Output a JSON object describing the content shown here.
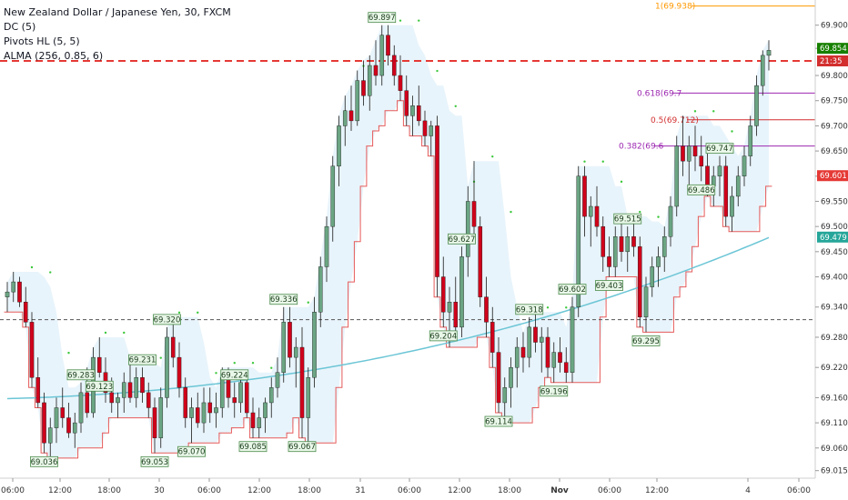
{
  "legend": {
    "symbol_line": "New Zealand Dollar / Japanese Yen, 30, FXCM",
    "indicators": [
      "DC (5)",
      "Pivots HL (5, 5)",
      "ALMA (256, 0.85, 6)"
    ]
  },
  "colors": {
    "up_candle": "#6ba583",
    "down_candle": "#d0021b",
    "donchian": "#e55a5a",
    "donchian_fill": "#e8f4fb",
    "alma": "#6cc6d6",
    "pivot_dots": "#3cc83c",
    "fib_0382": "#9c27b0",
    "fib_05": "#d32f2f",
    "fib_0618": "#9c27b0",
    "fib_1": "#ff9800",
    "current_price": "#178000",
    "level_red": "#e53935",
    "level_teal": "#26a69a"
  },
  "chart_data": {
    "type": "candlestick",
    "timeframe": "30",
    "symbol": "NZDJPY",
    "ylim": [
      69.0,
      69.95
    ],
    "y_ticks": [
      "69.015",
      "69.060",
      "69.110",
      "69.160",
      "69.220",
      "69.280",
      "69.340",
      "69.400",
      "69.450",
      "69.500",
      "69.550",
      "69.600",
      "69.650",
      "69.700",
      "69.750",
      "69.800",
      "69.854",
      "69.900"
    ],
    "x_ticks": [
      "06:00",
      "12:00",
      "18:00",
      "30",
      "06:00",
      "12:00",
      "18:00",
      "31",
      "06:00",
      "12:00",
      "18:00",
      "Nov",
      "06:00",
      "12:00",
      "4",
      "06:00"
    ],
    "candles": [
      [
        69.36,
        69.39,
        69.33,
        69.37
      ],
      [
        69.37,
        69.41,
        69.35,
        69.39
      ],
      [
        69.39,
        69.4,
        69.34,
        69.35
      ],
      [
        69.35,
        69.38,
        69.3,
        69.31
      ],
      [
        69.31,
        69.33,
        69.18,
        69.2
      ],
      [
        69.2,
        69.24,
        69.14,
        69.15
      ],
      [
        69.15,
        69.17,
        69.05,
        69.07
      ],
      [
        69.07,
        69.12,
        69.04,
        69.1
      ],
      [
        69.1,
        69.16,
        69.07,
        69.14
      ],
      [
        69.14,
        69.18,
        69.1,
        69.12
      ],
      [
        69.12,
        69.15,
        69.08,
        69.09
      ],
      [
        69.09,
        69.13,
        69.06,
        69.11
      ],
      [
        69.11,
        69.19,
        69.09,
        69.17
      ],
      [
        69.17,
        69.22,
        69.12,
        69.13
      ],
      [
        69.13,
        69.26,
        69.12,
        69.24
      ],
      [
        69.24,
        69.28,
        69.2,
        69.21
      ],
      [
        69.21,
        69.24,
        69.15,
        69.17
      ],
      [
        69.17,
        69.2,
        69.13,
        69.15
      ],
      [
        69.15,
        69.17,
        69.12,
        69.16
      ],
      [
        69.16,
        69.21,
        69.13,
        69.19
      ],
      [
        69.19,
        69.23,
        69.15,
        69.16
      ],
      [
        69.16,
        69.22,
        69.14,
        69.2
      ],
      [
        69.2,
        69.22,
        69.15,
        69.17
      ],
      [
        69.17,
        69.19,
        69.12,
        69.14
      ],
      [
        69.14,
        69.16,
        69.05,
        69.08
      ],
      [
        69.08,
        69.18,
        69.06,
        69.16
      ],
      [
        69.16,
        69.3,
        69.14,
        69.28
      ],
      [
        69.28,
        69.32,
        69.22,
        69.24
      ],
      [
        69.24,
        69.27,
        69.16,
        69.18
      ],
      [
        69.18,
        69.2,
        69.1,
        69.12
      ],
      [
        69.12,
        69.16,
        69.07,
        69.14
      ],
      [
        69.14,
        69.17,
        69.1,
        69.11
      ],
      [
        69.11,
        69.18,
        69.09,
        69.15
      ],
      [
        69.15,
        69.18,
        69.11,
        69.13
      ],
      [
        69.13,
        69.17,
        69.1,
        69.14
      ],
      [
        69.14,
        69.22,
        69.12,
        69.2
      ],
      [
        69.2,
        69.22,
        69.14,
        69.16
      ],
      [
        69.16,
        69.19,
        69.12,
        69.15
      ],
      [
        69.15,
        69.21,
        69.13,
        69.19
      ],
      [
        69.19,
        69.21,
        69.12,
        69.13
      ],
      [
        69.13,
        69.16,
        69.08,
        69.1
      ],
      [
        69.1,
        69.14,
        69.08,
        69.12
      ],
      [
        69.12,
        69.16,
        69.09,
        69.15
      ],
      [
        69.15,
        69.2,
        69.12,
        69.18
      ],
      [
        69.18,
        69.24,
        69.16,
        69.21
      ],
      [
        69.21,
        69.34,
        69.19,
        69.31
      ],
      [
        69.31,
        69.34,
        69.22,
        69.24
      ],
      [
        69.24,
        69.28,
        69.18,
        69.26
      ],
      [
        69.26,
        69.3,
        69.08,
        69.12
      ],
      [
        69.12,
        69.22,
        69.07,
        69.2
      ],
      [
        69.2,
        69.36,
        69.18,
        69.33
      ],
      [
        69.33,
        69.44,
        69.3,
        69.42
      ],
      [
        69.42,
        69.52,
        69.39,
        69.5
      ],
      [
        69.5,
        69.64,
        69.47,
        69.62
      ],
      [
        69.62,
        69.72,
        69.58,
        69.7
      ],
      [
        69.7,
        69.76,
        69.66,
        69.73
      ],
      [
        69.73,
        69.78,
        69.69,
        69.71
      ],
      [
        69.71,
        69.81,
        69.7,
        69.79
      ],
      [
        69.79,
        69.83,
        69.74,
        69.76
      ],
      [
        69.76,
        69.84,
        69.73,
        69.82
      ],
      [
        69.82,
        69.87,
        69.78,
        69.8
      ],
      [
        69.8,
        69.9,
        69.78,
        69.88
      ],
      [
        69.88,
        69.9,
        69.82,
        69.84
      ],
      [
        69.84,
        69.86,
        69.78,
        69.8
      ],
      [
        69.8,
        69.84,
        69.75,
        69.77
      ],
      [
        69.77,
        69.8,
        69.7,
        69.72
      ],
      [
        69.72,
        69.76,
        69.68,
        69.74
      ],
      [
        69.74,
        69.78,
        69.7,
        69.71
      ],
      [
        69.71,
        69.73,
        69.66,
        69.68
      ],
      [
        69.68,
        69.71,
        69.64,
        69.7
      ],
      [
        69.7,
        69.72,
        69.36,
        69.4
      ],
      [
        69.4,
        69.44,
        69.3,
        69.33
      ],
      [
        69.33,
        69.38,
        69.26,
        69.35
      ],
      [
        69.35,
        69.4,
        69.28,
        69.3
      ],
      [
        69.3,
        69.46,
        69.28,
        69.44
      ],
      [
        69.44,
        69.58,
        69.4,
        69.55
      ],
      [
        69.55,
        69.63,
        69.48,
        69.5
      ],
      [
        69.5,
        69.52,
        69.34,
        69.36
      ],
      [
        69.36,
        69.4,
        69.28,
        69.31
      ],
      [
        69.31,
        69.34,
        69.22,
        69.25
      ],
      [
        69.25,
        69.28,
        69.13,
        69.15
      ],
      [
        69.15,
        69.2,
        69.11,
        69.18
      ],
      [
        69.18,
        69.24,
        69.14,
        69.22
      ],
      [
        69.22,
        69.28,
        69.18,
        69.26
      ],
      [
        69.26,
        69.29,
        69.21,
        69.24
      ],
      [
        69.24,
        69.32,
        69.22,
        69.3
      ],
      [
        69.3,
        69.33,
        69.25,
        69.27
      ],
      [
        69.27,
        69.3,
        69.21,
        69.28
      ],
      [
        69.28,
        69.3,
        69.2,
        69.22
      ],
      [
        69.22,
        69.27,
        69.19,
        69.25
      ],
      [
        69.25,
        69.28,
        69.21,
        69.23
      ],
      [
        69.23,
        69.26,
        69.19,
        69.21
      ],
      [
        69.21,
        69.36,
        69.19,
        69.34
      ],
      [
        69.34,
        69.62,
        69.32,
        69.6
      ],
      [
        69.6,
        69.62,
        69.48,
        69.52
      ],
      [
        69.52,
        69.56,
        69.46,
        69.54
      ],
      [
        69.54,
        69.58,
        69.48,
        69.5
      ],
      [
        69.5,
        69.52,
        69.41,
        69.44
      ],
      [
        69.44,
        69.48,
        69.4,
        69.42
      ],
      [
        69.42,
        69.5,
        69.4,
        69.48
      ],
      [
        69.48,
        69.52,
        69.43,
        69.45
      ],
      [
        69.45,
        69.5,
        69.41,
        69.48
      ],
      [
        69.48,
        69.51,
        69.44,
        69.46
      ],
      [
        69.46,
        69.48,
        69.3,
        69.32
      ],
      [
        69.32,
        69.4,
        69.29,
        69.38
      ],
      [
        69.38,
        69.44,
        69.36,
        69.42
      ],
      [
        69.42,
        69.46,
        69.38,
        69.44
      ],
      [
        69.44,
        69.5,
        69.41,
        69.48
      ],
      [
        69.48,
        69.56,
        69.46,
        69.54
      ],
      [
        69.54,
        69.68,
        69.52,
        69.66
      ],
      [
        69.66,
        69.72,
        69.6,
        69.63
      ],
      [
        69.63,
        69.68,
        69.58,
        69.66
      ],
      [
        69.66,
        69.7,
        69.61,
        69.64
      ],
      [
        69.64,
        69.68,
        69.59,
        69.62
      ],
      [
        69.62,
        69.66,
        69.56,
        69.58
      ],
      [
        69.58,
        69.62,
        69.54,
        69.6
      ],
      [
        69.6,
        69.64,
        69.56,
        69.62
      ],
      [
        69.62,
        69.64,
        69.5,
        69.52
      ],
      [
        69.52,
        69.58,
        69.49,
        69.56
      ],
      [
        69.56,
        69.62,
        69.54,
        69.6
      ],
      [
        69.6,
        69.66,
        69.58,
        69.64
      ],
      [
        69.64,
        69.72,
        69.62,
        69.7
      ],
      [
        69.7,
        69.8,
        69.68,
        69.78
      ],
      [
        69.78,
        69.85,
        69.76,
        69.84
      ],
      [
        69.84,
        69.87,
        69.81,
        69.85
      ]
    ],
    "pivot_labels_high": [
      "69.283",
      "69.231",
      "69.320",
      "69.224",
      "69.336",
      "69.897",
      "69.627",
      "69.318",
      "69.602",
      "69.515",
      "69.747"
    ],
    "pivot_labels_low": [
      "69.036",
      "69.123",
      "69.053",
      "69.070",
      "69.085",
      "69.067",
      "69.204",
      "69.114",
      "69.196",
      "69.403",
      "69.295",
      "69.486"
    ],
    "fib_levels": [
      {
        "label": "1(69.938)",
        "value": 69.938
      },
      {
        "label": "0.618(69.7",
        "value": 69.765
      },
      {
        "label": "0.5(69.712)",
        "value": 69.712
      },
      {
        "label": "0.382(69.6",
        "value": 69.66
      }
    ],
    "price_labels": [
      {
        "label": "69.854",
        "value": 69.854
      },
      {
        "label": "21:35",
        "value": 69.829
      },
      {
        "label": "69.601",
        "value": 69.601
      },
      {
        "label": "69.479",
        "value": 69.479
      }
    ],
    "hlines": [
      {
        "value": 69.829,
        "style": "dashed-red"
      },
      {
        "value": 69.315,
        "style": "dashed-gray"
      }
    ]
  }
}
